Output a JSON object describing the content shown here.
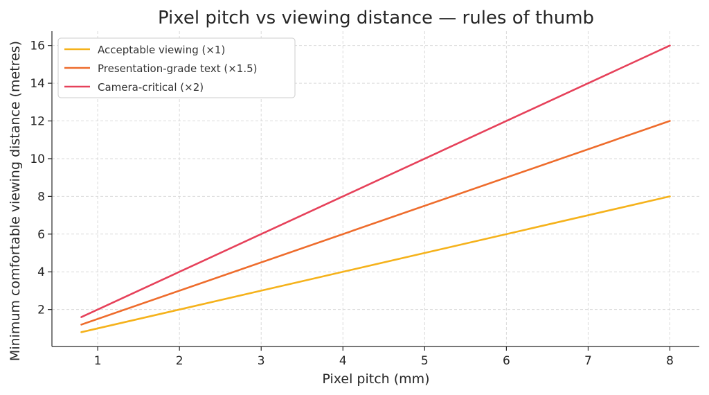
{
  "chart_data": {
    "type": "line",
    "title": "Pixel pitch vs viewing distance — rules of thumb",
    "xlabel": "Pixel pitch (mm)",
    "ylabel": "Minimum comfortable viewing distance (metres)",
    "xlim": [
      0.44,
      8.36
    ],
    "ylim": [
      0.04,
      16.76
    ],
    "xticks": [
      1,
      2,
      3,
      4,
      5,
      6,
      7,
      8
    ],
    "yticks": [
      2,
      4,
      6,
      8,
      10,
      12,
      14,
      16
    ],
    "grid": true,
    "legend_position": "top-left",
    "series": [
      {
        "name": "Acceptable viewing (×1)",
        "color": "#f5b21b",
        "x": [
          0.8,
          8
        ],
        "y": [
          0.8,
          8
        ]
      },
      {
        "name": "Presentation-grade text (×1.5)",
        "color": "#ee6c2c",
        "x": [
          0.8,
          8
        ],
        "y": [
          1.2,
          12
        ]
      },
      {
        "name": "Camera-critical (×2)",
        "color": "#e6415a",
        "x": [
          0.8,
          8
        ],
        "y": [
          1.6,
          16
        ]
      }
    ]
  }
}
